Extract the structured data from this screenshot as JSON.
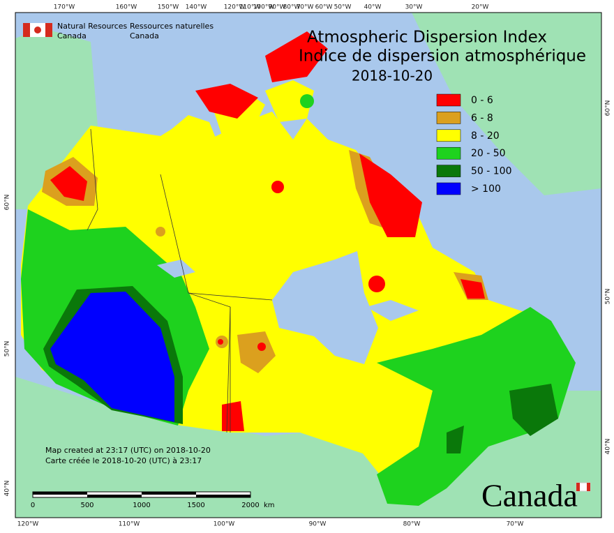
{
  "header": {
    "org_en": [
      "Natural Resources",
      "Canada"
    ],
    "org_fr": [
      "Ressources naturelles",
      "Canada"
    ]
  },
  "title": [
    "Atmospheric Dispersion Index",
    "Indice de dispersion atmosphérique",
    "2018-10-20"
  ],
  "legend": [
    {
      "label": "0 - 6",
      "color": "#ff0000"
    },
    {
      "label": "6 - 8",
      "color": "#dba01e"
    },
    {
      "label": "8 - 20",
      "color": "#ffff00"
    },
    {
      "label": "20 - 50",
      "color": "#1ed21e"
    },
    {
      "label": "50 - 100",
      "color": "#0a780a"
    },
    {
      "label": "> 100",
      "color": "#0000ff"
    }
  ],
  "top_longitudes": [
    "170°W",
    "160°W",
    "150°W",
    "140°W",
    "120°W",
    "110°W",
    "100°W",
    "90°W",
    "80°W",
    "70°W",
    "60°W",
    "50°W",
    "40°W",
    "30°W",
    "20°W"
  ],
  "bottom_longitudes": [
    "120°W",
    "110°W",
    "100°W",
    "90°W",
    "80°W",
    "70°W"
  ],
  "left_latitudes": [
    "60°N",
    "50°N",
    "40°N"
  ],
  "right_latitudes": [
    "60°N",
    "50°N",
    "40°N"
  ],
  "notes": [
    "Map created at 23:17 (UTC) on 2018-10-20",
    "Carte créée le 2018-10-20 (UTC) à 23:17"
  ],
  "scale_bar": {
    "labels": [
      "0",
      "500",
      "1000",
      "1500",
      "2000"
    ],
    "unit": "km"
  },
  "wordmark": "Canada"
}
